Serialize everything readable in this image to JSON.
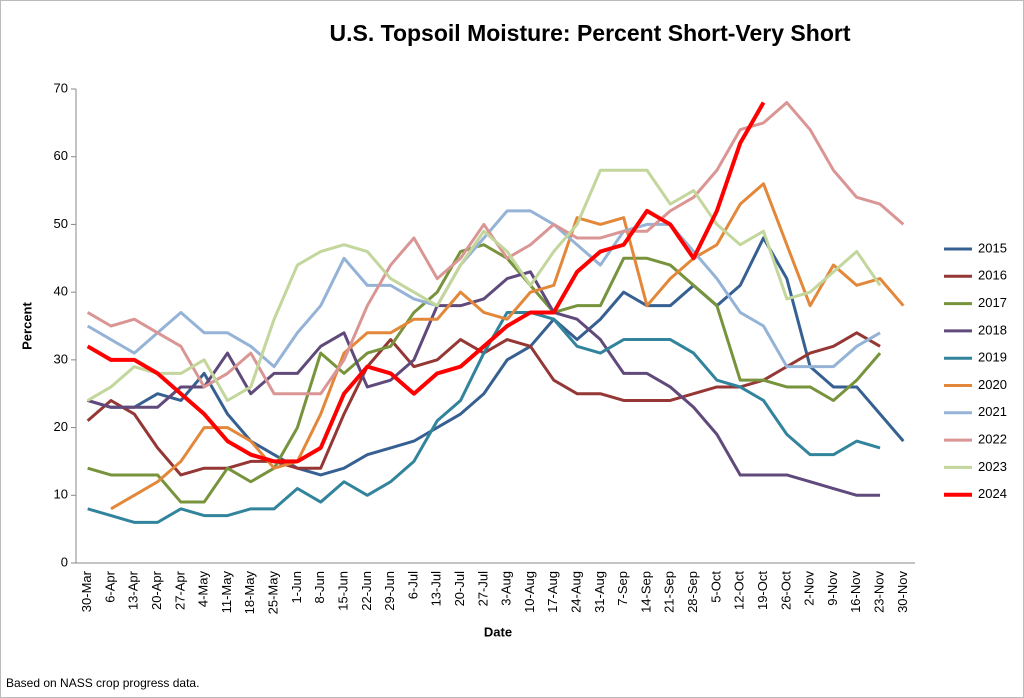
{
  "chart_data": {
    "type": "line",
    "title": "U.S. Topsoil Moisture: Percent Short-Very Short",
    "x_label": "Date",
    "y_label": "Percent",
    "note": "Based on NASS crop progress data.",
    "categories": [
      "30-Mar",
      "6-Apr",
      "13-Apr",
      "20-Apr",
      "27-Apr",
      "4-May",
      "11-May",
      "18-May",
      "25-May",
      "1-Jun",
      "8-Jun",
      "15-Jun",
      "22-Jun",
      "29-Jun",
      "6-Jul",
      "13-Jul",
      "20-Jul",
      "27-Jul",
      "3-Aug",
      "10-Aug",
      "17-Aug",
      "24-Aug",
      "31-Aug",
      "7-Sep",
      "14-Sep",
      "21-Sep",
      "28-Sep",
      "5-Oct",
      "12-Oct",
      "19-Oct",
      "26-Oct",
      "2-Nov",
      "9-Nov",
      "16-Nov",
      "23-Nov",
      "30-Nov"
    ],
    "series": [
      {
        "name": "2015",
        "color": "#376092",
        "values": [
          24,
          23,
          23,
          25,
          24,
          28,
          22,
          18,
          16,
          14,
          13,
          14,
          16,
          17,
          18,
          20,
          22,
          25,
          30,
          32,
          36,
          33,
          36,
          40,
          38,
          38,
          41,
          38,
          41,
          48,
          42,
          29,
          26,
          26,
          22,
          18
        ]
      },
      {
        "name": "2016",
        "color": "#953735",
        "values": [
          21,
          24,
          22,
          17,
          13,
          14,
          14,
          15,
          15,
          14,
          14,
          22,
          29,
          33,
          29,
          30,
          33,
          31,
          33,
          32,
          27,
          25,
          25,
          24,
          24,
          24,
          25,
          26,
          26,
          27,
          29,
          31,
          32,
          34,
          32,
          null
        ]
      },
      {
        "name": "2017",
        "color": "#77933c",
        "values": [
          14,
          13,
          13,
          13,
          9,
          9,
          14,
          12,
          14,
          20,
          31,
          28,
          31,
          32,
          37,
          40,
          46,
          47,
          45,
          41,
          37,
          38,
          38,
          45,
          45,
          44,
          41,
          38,
          27,
          27,
          26,
          26,
          24,
          27,
          31,
          null
        ]
      },
      {
        "name": "2018",
        "color": "#604a7b",
        "values": [
          24,
          23,
          23,
          23,
          26,
          26,
          31,
          25,
          28,
          28,
          32,
          34,
          26,
          27,
          30,
          38,
          38,
          39,
          42,
          43,
          37,
          36,
          33,
          28,
          28,
          26,
          23,
          19,
          13,
          13,
          13,
          12,
          11,
          10,
          10,
          null
        ]
      },
      {
        "name": "2019",
        "color": "#31849b",
        "values": [
          8,
          7,
          6,
          6,
          8,
          7,
          7,
          8,
          8,
          11,
          9,
          12,
          10,
          12,
          15,
          21,
          24,
          31,
          37,
          37,
          36,
          32,
          31,
          33,
          33,
          33,
          31,
          27,
          26,
          24,
          19,
          16,
          16,
          18,
          17,
          null
        ]
      },
      {
        "name": "2020",
        "color": "#e3883a",
        "values": [
          null,
          8,
          10,
          12,
          15,
          20,
          20,
          18,
          14,
          15,
          22,
          31,
          34,
          34,
          36,
          36,
          40,
          37,
          36,
          40,
          41,
          51,
          50,
          51,
          38,
          42,
          45,
          47,
          53,
          56,
          47,
          38,
          44,
          41,
          42,
          38
        ]
      },
      {
        "name": "2021",
        "color": "#95b3d7",
        "values": [
          35,
          33,
          31,
          34,
          37,
          34,
          34,
          32,
          29,
          34,
          38,
          45,
          41,
          41,
          39,
          38,
          44,
          48,
          52,
          52,
          50,
          47,
          44,
          49,
          50,
          50,
          46,
          42,
          37,
          35,
          29,
          29,
          29,
          32,
          34,
          null
        ]
      },
      {
        "name": "2022",
        "color": "#d99694",
        "values": [
          37,
          35,
          36,
          34,
          32,
          26,
          28,
          31,
          25,
          25,
          25,
          30,
          38,
          44,
          48,
          42,
          45,
          50,
          45,
          47,
          50,
          48,
          48,
          49,
          49,
          52,
          54,
          58,
          64,
          65,
          68,
          64,
          58,
          54,
          53,
          50
        ]
      },
      {
        "name": "2023",
        "color": "#c3d69b",
        "values": [
          24,
          26,
          29,
          28,
          28,
          30,
          24,
          26,
          36,
          44,
          46,
          47,
          46,
          42,
          40,
          38,
          44,
          49,
          46,
          41,
          46,
          50,
          58,
          58,
          58,
          53,
          55,
          50,
          47,
          49,
          39,
          40,
          43,
          46,
          41,
          null
        ]
      },
      {
        "name": "2024",
        "color": "#ff0000",
        "values": [
          32,
          30,
          30,
          28,
          25,
          22,
          18,
          16,
          15,
          15,
          17,
          25,
          29,
          28,
          25,
          28,
          29,
          32,
          35,
          37,
          37,
          43,
          46,
          47,
          52,
          50,
          45,
          52,
          62,
          68,
          null,
          null,
          null,
          null,
          null,
          null
        ]
      }
    ],
    "ylim": [
      0,
      70
    ],
    "yticks": [
      0,
      10,
      20,
      30,
      40,
      50,
      60,
      70
    ],
    "grid": false,
    "legend": "right"
  }
}
